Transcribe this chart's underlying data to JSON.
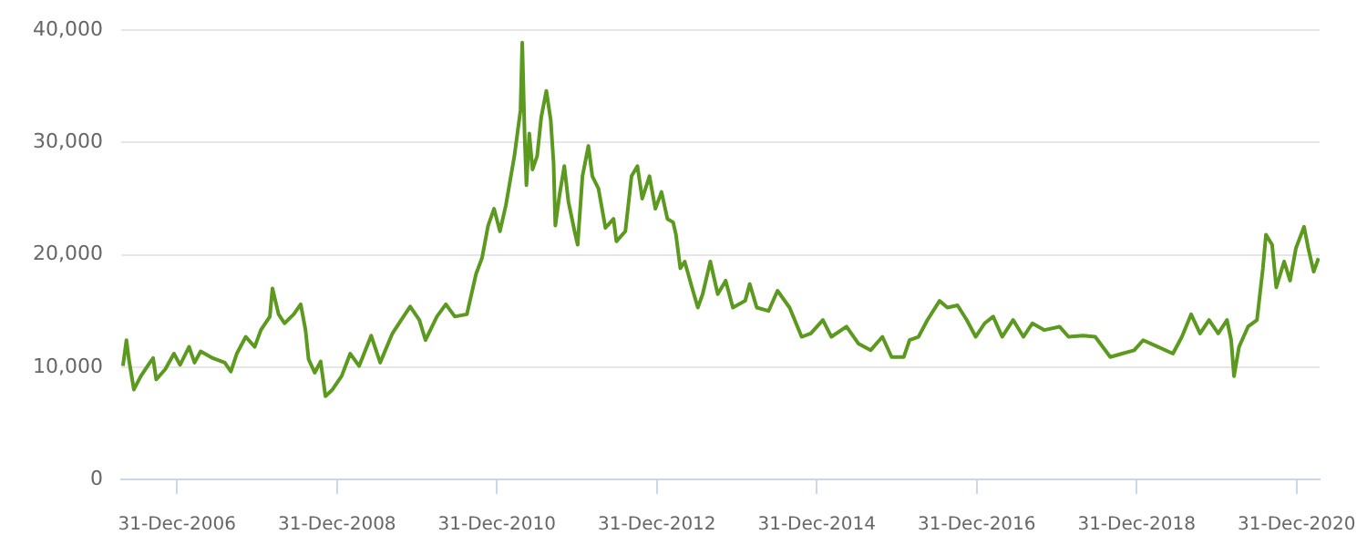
{
  "chart_data": {
    "type": "line",
    "xlim": [
      "2006-04-20",
      "2021-04-15"
    ],
    "ylim": [
      0,
      40000
    ],
    "xticks": [
      {
        "value": "2006-12-31",
        "label": "31-Dec-2006"
      },
      {
        "value": "2008-12-31",
        "label": "31-Dec-2008"
      },
      {
        "value": "2010-12-31",
        "label": "31-Dec-2010"
      },
      {
        "value": "2012-12-31",
        "label": "31-Dec-2012"
      },
      {
        "value": "2014-12-31",
        "label": "31-Dec-2014"
      },
      {
        "value": "2016-12-31",
        "label": "31-Dec-2016"
      },
      {
        "value": "2018-12-31",
        "label": "31-Dec-2018"
      },
      {
        "value": "2020-12-31",
        "label": "31-Dec-2020"
      }
    ],
    "yticks": [
      0,
      {
        "value": 10000,
        "label": "10,000"
      },
      {
        "value": 20000,
        "label": "20,000"
      },
      {
        "value": 30000,
        "label": "30,000"
      },
      {
        "value": 40000,
        "label": "40,000"
      }
    ],
    "grid": "y",
    "legend": false,
    "marker": "none",
    "line_style": "solid",
    "x": [
      "2006-04-28",
      "2006-05-14",
      "2006-05-25",
      "2006-06-17",
      "2006-07-19",
      "2006-08-29",
      "2006-09-13",
      "2006-09-27",
      "2006-11-07",
      "2006-12-17",
      "2007-01-14",
      "2007-02-24",
      "2007-03-21",
      "2007-04-18",
      "2007-06-12",
      "2007-08-06",
      "2007-09-03",
      "2007-09-30",
      "2007-11-10",
      "2007-12-21",
      "2008-01-18",
      "2008-02-28",
      "2008-03-11",
      "2008-04-08",
      "2008-05-05",
      "2008-06-16",
      "2008-07-18",
      "2008-08-09",
      "2008-08-23",
      "2008-09-20",
      "2008-10-17",
      "2008-11-08",
      "2008-12-10",
      "2009-01-21",
      "2009-03-01",
      "2009-04-11",
      "2009-06-05",
      "2009-07-16",
      "2009-09-10",
      "2009-10-20",
      "2009-11-30",
      "2010-01-11",
      "2010-02-08",
      "2010-04-01",
      "2010-05-12",
      "2010-06-22",
      "2010-08-16",
      "2010-09-27",
      "2010-10-24",
      "2010-11-21",
      "2010-12-18",
      "2011-01-14",
      "2011-02-10",
      "2011-03-21",
      "2011-04-18",
      "2011-04-26",
      "2011-05-07",
      "2011-05-15",
      "2011-05-28",
      "2011-06-12",
      "2011-07-03",
      "2011-07-22",
      "2011-08-14",
      "2011-09-03",
      "2011-09-16",
      "2011-09-24",
      "2011-10-13",
      "2011-11-04",
      "2011-11-23",
      "2011-12-21",
      "2012-01-04",
      "2012-01-26",
      "2012-02-22",
      "2012-03-11",
      "2012-04-08",
      "2012-05-10",
      "2012-06-16",
      "2012-06-29",
      "2012-08-09",
      "2012-09-06",
      "2012-10-03",
      "2012-10-25",
      "2012-11-27",
      "2012-12-24",
      "2013-01-21",
      "2013-02-17",
      "2013-03-15",
      "2013-03-28",
      "2013-04-17",
      "2013-05-07",
      "2013-06-09",
      "2013-07-06",
      "2013-07-28",
      "2013-09-01",
      "2013-10-05",
      "2013-11-10",
      "2013-12-13",
      "2014-02-07",
      "2014-02-28",
      "2014-04-01",
      "2014-05-25",
      "2014-07-05",
      "2014-08-29",
      "2014-10-23",
      "2014-12-04",
      "2015-01-28",
      "2015-03-08",
      "2015-05-16",
      "2015-07-09",
      "2015-09-03",
      "2015-10-27",
      "2015-12-08",
      "2016-02-02",
      "2016-02-28",
      "2016-04-09",
      "2016-05-20",
      "2016-07-14",
      "2016-08-19",
      "2016-10-04",
      "2016-11-15",
      "2016-12-26",
      "2017-02-05",
      "2017-03-16",
      "2017-04-26",
      "2017-06-15",
      "2017-08-01",
      "2017-09-11",
      "2017-11-05",
      "2018-01-13",
      "2018-02-23",
      "2018-05-01",
      "2018-06-25",
      "2018-09-02",
      "2018-10-26",
      "2018-12-20",
      "2019-01-30",
      "2019-04-08",
      "2019-06-15",
      "2019-07-26",
      "2019-09-06",
      "2019-10-17",
      "2019-11-27",
      "2020-01-08",
      "2020-02-17",
      "2020-03-07",
      "2020-03-20",
      "2020-04-12",
      "2020-05-23",
      "2020-07-03",
      "2020-07-30",
      "2020-08-13",
      "2020-09-10",
      "2020-09-29",
      "2020-11-04",
      "2020-12-01",
      "2020-12-28",
      "2021-02-03",
      "2021-02-22",
      "2021-03-19",
      "2021-04-10"
    ],
    "series": [
      {
        "color": "#5b9a1e",
        "values": [
          10100,
          12400,
          10700,
          8000,
          9200,
          10400,
          10800,
          8900,
          9800,
          11200,
          10200,
          11800,
          10400,
          11400,
          10800,
          10400,
          9600,
          11200,
          12700,
          11800,
          13300,
          14500,
          17000,
          14700,
          13900,
          14700,
          15600,
          13300,
          10700,
          9500,
          10500,
          7400,
          8000,
          9200,
          11200,
          10100,
          12800,
          10400,
          13000,
          14200,
          15400,
          14200,
          12400,
          14500,
          15600,
          14500,
          14700,
          18300,
          19700,
          22600,
          24100,
          22100,
          24400,
          28800,
          32900,
          38900,
          30500,
          26200,
          30800,
          27600,
          28800,
          32300,
          34600,
          32000,
          28200,
          22600,
          25300,
          27900,
          24700,
          22100,
          20900,
          27000,
          29700,
          27000,
          25900,
          22400,
          23200,
          21200,
          22100,
          27000,
          27900,
          25000,
          27000,
          24100,
          25600,
          23200,
          22900,
          21800,
          18800,
          19400,
          17100,
          15300,
          16500,
          19400,
          16500,
          17700,
          15300,
          15900,
          17400,
          15300,
          15000,
          16800,
          15300,
          12700,
          13000,
          14200,
          12700,
          13600,
          12100,
          11500,
          12700,
          10900,
          10900,
          12400,
          12700,
          14200,
          15900,
          15300,
          15500,
          14200,
          12700,
          13900,
          14500,
          12700,
          14200,
          12700,
          13900,
          13300,
          13600,
          12700,
          12800,
          12700,
          10900,
          11200,
          11500,
          12400,
          11800,
          11200,
          12700,
          14700,
          13000,
          14200,
          13000,
          14200,
          12400,
          9200,
          11800,
          13600,
          14200,
          18800,
          21800,
          20900,
          17100,
          19400,
          17700,
          20600,
          22500,
          20600,
          18500,
          19700
        ]
      }
    ]
  }
}
